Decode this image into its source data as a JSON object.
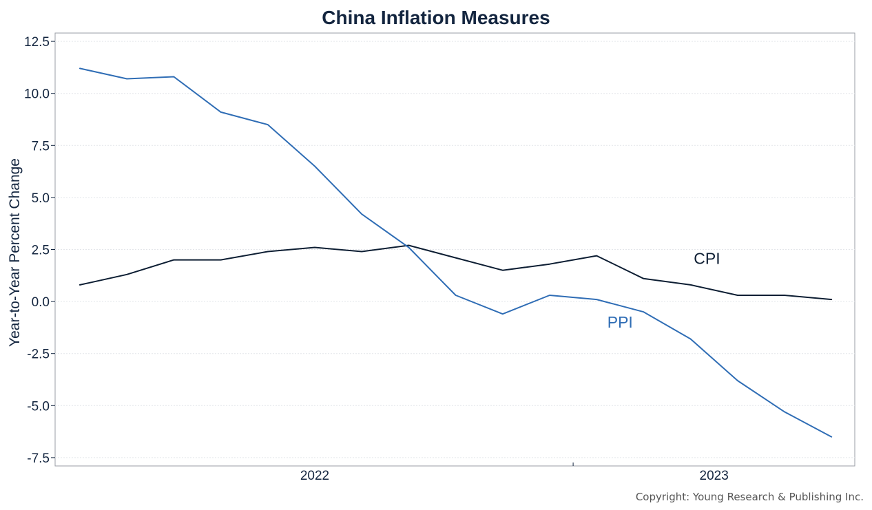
{
  "chart_data": {
    "type": "line",
    "title": "China Inflation Measures",
    "ylabel": "Year-to-Year Percent Change",
    "xlabel": "",
    "ylim": [
      -7.9,
      12.9
    ],
    "yticks": [
      12.5,
      10.0,
      7.5,
      5.0,
      2.5,
      0.0,
      -2.5,
      -5.0,
      -7.5
    ],
    "ytick_labels": [
      "12.5",
      "10.0",
      "7.5",
      "5.0",
      "2.5",
      "0.0",
      "-2.5",
      "-5.0",
      "-7.5"
    ],
    "x_periods": 17,
    "xtick_labels": [
      {
        "label": "2022",
        "index": 5
      },
      {
        "label": "2023",
        "index": 13.5
      }
    ],
    "x_minor_tick_index": 10.5,
    "series": [
      {
        "name": "CPI",
        "color": "#0d1e33",
        "values": [
          0.8,
          1.3,
          2.0,
          2.0,
          2.4,
          2.6,
          2.4,
          2.7,
          2.1,
          1.5,
          1.8,
          2.2,
          1.1,
          0.8,
          0.3,
          0.3,
          0.1
        ]
      },
      {
        "name": "PPI",
        "color": "#2f6db5",
        "values": [
          11.2,
          10.7,
          10.8,
          9.1,
          8.5,
          6.5,
          4.2,
          2.6,
          0.3,
          -0.6,
          0.3,
          0.1,
          -0.5,
          -1.8,
          -3.8,
          -5.3,
          -6.5
        ]
      }
    ],
    "annotations": [
      {
        "text": "CPI",
        "series": "CPI",
        "at_index": 13.35,
        "at_value": 1.8
      },
      {
        "text": "PPI",
        "series": "PPI",
        "at_index": 11.5,
        "at_value": -1.25
      }
    ],
    "grid": true
  },
  "footer": {
    "copyright": "Copyright: Young Research & Publishing Inc."
  }
}
